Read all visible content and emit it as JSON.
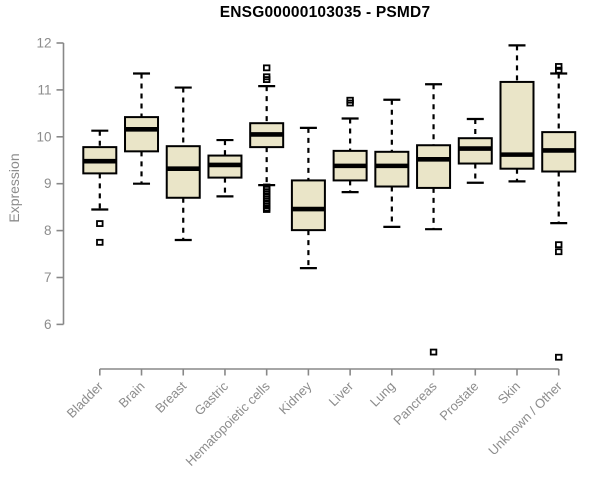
{
  "page": {
    "background": "#ffffff"
  },
  "chart_data": {
    "type": "boxplot",
    "title": "ENSG00000103035 - PSMD7",
    "ylabel": "Expression",
    "xlabel": "",
    "ylim": [
      6,
      12
    ],
    "y_ticks": [
      6,
      7,
      8,
      9,
      10,
      11,
      12
    ],
    "grid": false,
    "legend": false,
    "colors": {
      "box_fill": "#eae5c8",
      "box_stroke": "#000000",
      "median": "#000000",
      "whisker": "#000000",
      "outlier": "#000000",
      "axis_line": "#888888",
      "tick_label": "#8c8c8c",
      "title": "#000000"
    },
    "categories": [
      "Bladder",
      "Brain",
      "Breast",
      "Gastric",
      "Hematopoietic cells",
      "Kidney",
      "Liver",
      "Lung",
      "Pancreas",
      "Prostate",
      "Skin",
      "Unknown / Other"
    ],
    "boxes": [
      {
        "label": "Bladder",
        "whisker_low": 8.45,
        "q1": 9.22,
        "median": 9.48,
        "q3": 9.78,
        "whisker_high": 10.13,
        "outliers": [
          8.15,
          7.75
        ]
      },
      {
        "label": "Brain",
        "whisker_low": 9.0,
        "q1": 9.69,
        "median": 10.16,
        "q3": 10.42,
        "whisker_high": 11.35,
        "outliers": []
      },
      {
        "label": "Breast",
        "whisker_low": 7.8,
        "q1": 8.7,
        "median": 9.32,
        "q3": 9.8,
        "whisker_high": 11.05,
        "outliers": []
      },
      {
        "label": "Gastric",
        "whisker_low": 8.73,
        "q1": 9.13,
        "median": 9.4,
        "q3": 9.6,
        "whisker_high": 9.93,
        "outliers": []
      },
      {
        "label": "Hematopoietic cells",
        "whisker_low": 8.97,
        "q1": 9.78,
        "median": 10.05,
        "q3": 10.29,
        "whisker_high": 11.08,
        "outliers": [
          11.47,
          11.28,
          11.22,
          8.93,
          8.88,
          8.83,
          8.78,
          8.73,
          8.68,
          8.63,
          8.58,
          8.53,
          8.48,
          8.45
        ]
      },
      {
        "label": "Kidney",
        "whisker_low": 7.2,
        "q1": 8.01,
        "median": 8.46,
        "q3": 9.07,
        "whisker_high": 10.19,
        "outliers": []
      },
      {
        "label": "Liver",
        "whisker_low": 8.82,
        "q1": 9.07,
        "median": 9.38,
        "q3": 9.7,
        "whisker_high": 10.39,
        "outliers": [
          10.78,
          10.72
        ]
      },
      {
        "label": "Lung",
        "whisker_low": 8.08,
        "q1": 8.94,
        "median": 9.38,
        "q3": 9.68,
        "whisker_high": 10.79,
        "outliers": []
      },
      {
        "label": "Pancreas",
        "whisker_low": 8.03,
        "q1": 8.91,
        "median": 9.52,
        "q3": 9.82,
        "whisker_high": 11.12,
        "outliers": [
          5.41
        ]
      },
      {
        "label": "Prostate",
        "whisker_low": 9.02,
        "q1": 9.43,
        "median": 9.75,
        "q3": 9.97,
        "whisker_high": 10.38,
        "outliers": []
      },
      {
        "label": "Skin",
        "whisker_low": 9.05,
        "q1": 9.32,
        "median": 9.62,
        "q3": 11.17,
        "whisker_high": 11.95,
        "outliers": []
      },
      {
        "label": "Unknown / Other",
        "whisker_low": 8.16,
        "q1": 9.26,
        "median": 9.71,
        "q3": 10.1,
        "whisker_high": 11.35,
        "outliers": [
          11.5,
          11.42,
          7.7,
          7.55,
          5.3
        ]
      }
    ]
  }
}
